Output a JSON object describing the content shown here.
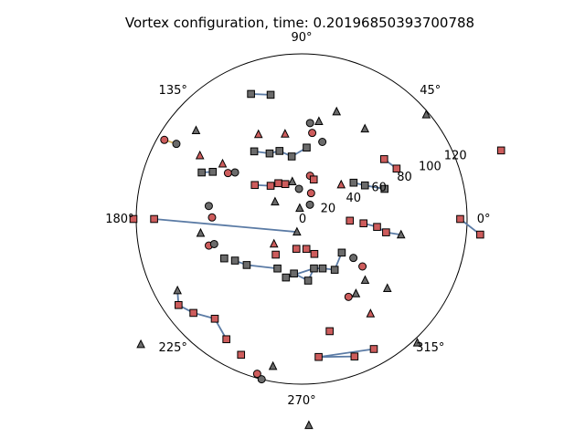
{
  "chart_data": {
    "type": "scatter",
    "projection": "polar",
    "title": "Vortex configuration, time: 0.20196850393700788",
    "rlim": [
      0,
      120
    ],
    "r_ticks": [
      0,
      20,
      40,
      60,
      80,
      100,
      120
    ],
    "r_tick_labels": [
      "0",
      "20",
      "40",
      "60",
      "80",
      "100",
      "120"
    ],
    "theta_ticks_deg": [
      0,
      45,
      90,
      135,
      180,
      225,
      270,
      315
    ],
    "theta_tick_labels": [
      "0°",
      "45°",
      "90°",
      "135°",
      "180°",
      "225°",
      "270°",
      "315°"
    ],
    "grid": false,
    "colors": {
      "positive": "#cd5c5c",
      "negative": "#6b6b6b",
      "pair_line": "#5b7ba5",
      "small_pair_line": "#d4b05a",
      "outline": "#000000"
    },
    "marker_kinds": {
      "circle": "single vortex",
      "triangle": "free vortex",
      "square": "dipole/cluster member"
    },
    "points": [
      {
        "theta": 150,
        "r": 115,
        "sign": "positive",
        "marker": "circle"
      },
      {
        "theta": 149,
        "r": 106,
        "sign": "negative",
        "marker": "circle"
      },
      {
        "theta": 140,
        "r": 100,
        "sign": "negative",
        "marker": "triangle"
      },
      {
        "theta": 112,
        "r": 98,
        "sign": "negative",
        "marker": "square"
      },
      {
        "theta": 104,
        "r": 93,
        "sign": "negative",
        "marker": "square"
      },
      {
        "theta": 72,
        "r": 82,
        "sign": "negative",
        "marker": "triangle"
      },
      {
        "theta": 40,
        "r": 118,
        "sign": "negative",
        "marker": "triangle"
      },
      {
        "theta": 80,
        "r": 72,
        "sign": "negative",
        "marker": "triangle"
      },
      {
        "theta": 85,
        "r": 70,
        "sign": "negative",
        "marker": "circle"
      },
      {
        "theta": 55,
        "r": 80,
        "sign": "negative",
        "marker": "triangle"
      },
      {
        "theta": 117,
        "r": 69,
        "sign": "positive",
        "marker": "triangle"
      },
      {
        "theta": 101,
        "r": 63,
        "sign": "positive",
        "marker": "triangle"
      },
      {
        "theta": 83,
        "r": 63,
        "sign": "positive",
        "marker": "circle"
      },
      {
        "theta": 148,
        "r": 87,
        "sign": "positive",
        "marker": "triangle"
      },
      {
        "theta": 145,
        "r": 70,
        "sign": "positive",
        "marker": "triangle"
      },
      {
        "theta": 125,
        "r": 60,
        "sign": "negative",
        "marker": "square"
      },
      {
        "theta": 116,
        "r": 53,
        "sign": "negative",
        "marker": "square"
      },
      {
        "theta": 108,
        "r": 52,
        "sign": "negative",
        "marker": "square"
      },
      {
        "theta": 99,
        "r": 46,
        "sign": "negative",
        "marker": "square"
      },
      {
        "theta": 86,
        "r": 52,
        "sign": "negative",
        "marker": "square"
      },
      {
        "theta": 75,
        "r": 58,
        "sign": "negative",
        "marker": "circle"
      },
      {
        "theta": 155,
        "r": 80,
        "sign": "negative",
        "marker": "square"
      },
      {
        "theta": 152,
        "r": 73,
        "sign": "negative",
        "marker": "square"
      },
      {
        "theta": 148,
        "r": 63,
        "sign": "positive",
        "marker": "circle"
      },
      {
        "theta": 145,
        "r": 59,
        "sign": "negative",
        "marker": "circle"
      },
      {
        "theta": 144,
        "r": 42,
        "sign": "positive",
        "marker": "square"
      },
      {
        "theta": 133,
        "r": 33,
        "sign": "positive",
        "marker": "square"
      },
      {
        "theta": 123,
        "r": 31,
        "sign": "positive",
        "marker": "square"
      },
      {
        "theta": 115,
        "r": 28,
        "sign": "positive",
        "marker": "square"
      },
      {
        "theta": 104,
        "r": 28,
        "sign": "negative",
        "marker": "triangle"
      },
      {
        "theta": 79,
        "r": 32,
        "sign": "positive",
        "marker": "circle"
      },
      {
        "theta": 95,
        "r": 22,
        "sign": "negative",
        "marker": "circle"
      },
      {
        "theta": 73,
        "r": 30,
        "sign": "positive",
        "marker": "square"
      },
      {
        "theta": 41,
        "r": 38,
        "sign": "positive",
        "marker": "triangle"
      },
      {
        "theta": 70,
        "r": 20,
        "sign": "positive",
        "marker": "circle"
      },
      {
        "theta": 60,
        "r": 12,
        "sign": "negative",
        "marker": "circle"
      },
      {
        "theta": 100,
        "r": 8,
        "sign": "negative",
        "marker": "triangle"
      },
      {
        "theta": 35,
        "r": 46,
        "sign": "negative",
        "marker": "square"
      },
      {
        "theta": 28,
        "r": 52,
        "sign": "negative",
        "marker": "square"
      },
      {
        "theta": 20,
        "r": 64,
        "sign": "negative",
        "marker": "square"
      },
      {
        "theta": 36,
        "r": 74,
        "sign": "positive",
        "marker": "square"
      },
      {
        "theta": 28,
        "r": 78,
        "sign": "positive",
        "marker": "square"
      },
      {
        "theta": 172,
        "r": 68,
        "sign": "negative",
        "marker": "circle"
      },
      {
        "theta": 179,
        "r": 65,
        "sign": "positive",
        "marker": "circle"
      },
      {
        "theta": 147,
        "r": 23,
        "sign": "negative",
        "marker": "triangle"
      },
      {
        "theta": 180,
        "r": 122,
        "sign": "positive",
        "marker": "square"
      },
      {
        "theta": 180,
        "r": 107,
        "sign": "positive",
        "marker": "square"
      },
      {
        "theta": 250,
        "r": 10,
        "sign": "negative",
        "marker": "triangle"
      },
      {
        "theta": 222,
        "r": 27,
        "sign": "positive",
        "marker": "triangle"
      },
      {
        "theta": 234,
        "r": 32,
        "sign": "positive",
        "marker": "square"
      },
      {
        "theta": 260,
        "r": 22,
        "sign": "positive",
        "marker": "square"
      },
      {
        "theta": 279,
        "r": 22,
        "sign": "positive",
        "marker": "square"
      },
      {
        "theta": 290,
        "r": 27,
        "sign": "positive",
        "marker": "square"
      },
      {
        "theta": 358,
        "r": 35,
        "sign": "positive",
        "marker": "square"
      },
      {
        "theta": 356,
        "r": 45,
        "sign": "positive",
        "marker": "square"
      },
      {
        "theta": 354,
        "r": 55,
        "sign": "positive",
        "marker": "square"
      },
      {
        "theta": 351,
        "r": 62,
        "sign": "positive",
        "marker": "square"
      },
      {
        "theta": 351,
        "r": 73,
        "sign": "negative",
        "marker": "triangle"
      },
      {
        "theta": 188,
        "r": 74,
        "sign": "negative",
        "marker": "triangle"
      },
      {
        "theta": 196,
        "r": 70,
        "sign": "positive",
        "marker": "circle"
      },
      {
        "theta": 196,
        "r": 66,
        "sign": "negative",
        "marker": "circle"
      },
      {
        "theta": 207,
        "r": 63,
        "sign": "negative",
        "marker": "square"
      },
      {
        "theta": 212,
        "r": 57,
        "sign": "negative",
        "marker": "square"
      },
      {
        "theta": 220,
        "r": 52,
        "sign": "negative",
        "marker": "square"
      },
      {
        "theta": 244,
        "r": 40,
        "sign": "negative",
        "marker": "square"
      },
      {
        "theta": 255,
        "r": 44,
        "sign": "negative",
        "marker": "square"
      },
      {
        "theta": 262,
        "r": 40,
        "sign": "negative",
        "marker": "square"
      },
      {
        "theta": 276,
        "r": 45,
        "sign": "negative",
        "marker": "square"
      },
      {
        "theta": 284,
        "r": 37,
        "sign": "negative",
        "marker": "square"
      },
      {
        "theta": 293,
        "r": 39,
        "sign": "negative",
        "marker": "square"
      },
      {
        "theta": 303,
        "r": 44,
        "sign": "negative",
        "marker": "square"
      },
      {
        "theta": 320,
        "r": 38,
        "sign": "negative",
        "marker": "square"
      },
      {
        "theta": 323,
        "r": 47,
        "sign": "negative",
        "marker": "circle"
      },
      {
        "theta": 322,
        "r": 56,
        "sign": "positive",
        "marker": "circle"
      },
      {
        "theta": 316,
        "r": 64,
        "sign": "negative",
        "marker": "triangle"
      },
      {
        "theta": 306,
        "r": 67,
        "sign": "negative",
        "marker": "triangle"
      },
      {
        "theta": 301,
        "r": 66,
        "sign": "positive",
        "marker": "circle"
      },
      {
        "theta": 321,
        "r": 80,
        "sign": "negative",
        "marker": "triangle"
      },
      {
        "theta": 306,
        "r": 85,
        "sign": "positive",
        "marker": "triangle"
      },
      {
        "theta": 284,
        "r": 84,
        "sign": "positive",
        "marker": "square"
      },
      {
        "theta": 277,
        "r": 101,
        "sign": "positive",
        "marker": "square"
      },
      {
        "theta": 291,
        "r": 107,
        "sign": "positive",
        "marker": "square"
      },
      {
        "theta": 299,
        "r": 108,
        "sign": "positive",
        "marker": "square"
      },
      {
        "theta": 313,
        "r": 123,
        "sign": "negative",
        "marker": "triangle"
      },
      {
        "theta": 272,
        "r": 150,
        "sign": "negative",
        "marker": "triangle"
      },
      {
        "theta": 254,
        "r": 117,
        "sign": "positive",
        "marker": "circle"
      },
      {
        "theta": 256,
        "r": 120,
        "sign": "negative",
        "marker": "circle"
      },
      {
        "theta": 259,
        "r": 109,
        "sign": "negative",
        "marker": "triangle"
      },
      {
        "theta": 246,
        "r": 108,
        "sign": "positive",
        "marker": "square"
      },
      {
        "theta": 238,
        "r": 103,
        "sign": "positive",
        "marker": "square"
      },
      {
        "theta": 229,
        "r": 96,
        "sign": "positive",
        "marker": "square"
      },
      {
        "theta": 221,
        "r": 104,
        "sign": "positive",
        "marker": "square"
      },
      {
        "theta": 215,
        "r": 109,
        "sign": "positive",
        "marker": "square"
      },
      {
        "theta": 210,
        "r": 104,
        "sign": "negative",
        "marker": "triangle"
      },
      {
        "theta": 218,
        "r": 148,
        "sign": "negative",
        "marker": "triangle"
      },
      {
        "theta": 19,
        "r": 153,
        "sign": "positive",
        "marker": "square"
      },
      {
        "theta": 0,
        "r": 115,
        "sign": "positive",
        "marker": "square"
      },
      {
        "theta": 355,
        "r": 130,
        "sign": "positive",
        "marker": "square"
      }
    ],
    "pair_links": [
      [
        3,
        4
      ],
      [
        15,
        16
      ],
      [
        16,
        17
      ],
      [
        17,
        18
      ],
      [
        18,
        19
      ],
      [
        21,
        22
      ],
      [
        25,
        26
      ],
      [
        26,
        27
      ],
      [
        27,
        28
      ],
      [
        37,
        38
      ],
      [
        38,
        39
      ],
      [
        40,
        41
      ],
      [
        46,
        47
      ],
      [
        54,
        55
      ],
      [
        55,
        56
      ],
      [
        56,
        57
      ],
      [
        62,
        63
      ],
      [
        63,
        64
      ],
      [
        65,
        66
      ],
      [
        66,
        67
      ],
      [
        67,
        68
      ],
      [
        68,
        69
      ],
      [
        69,
        70
      ],
      [
        70,
        71
      ],
      [
        80,
        81
      ],
      [
        80,
        82
      ],
      [
        89,
        90
      ],
      [
        90,
        91
      ],
      [
        91,
        92
      ],
      [
        92,
        93
      ],
      [
        96,
        97
      ],
      [
        97,
        98
      ],
      [
        65,
        68
      ]
    ],
    "small_pair_links": [
      [
        0,
        1
      ]
    ]
  }
}
